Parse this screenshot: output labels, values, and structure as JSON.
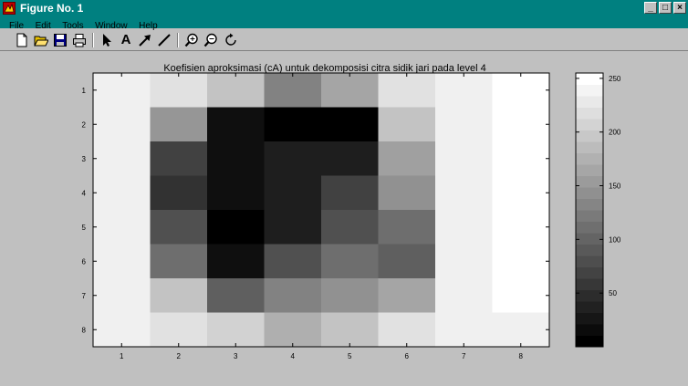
{
  "window": {
    "title": "Figure No. 1",
    "buttons": {
      "minimize": "_",
      "maximize": "□",
      "close": "×"
    }
  },
  "menu": {
    "items": [
      "File",
      "Edit",
      "Tools",
      "Window",
      "Help"
    ]
  },
  "toolbar": {
    "tools": [
      "new-figure",
      "open",
      "save",
      "print",
      "select-arrow",
      "text",
      "arrow",
      "line",
      "zoom-in",
      "zoom-out",
      "rotate"
    ],
    "text_tool_label": "A"
  },
  "chart_data": {
    "type": "heatmap",
    "title": "Koefisien aproksimasi (cA) untuk dekomposisi citra sidik jari pada level 4",
    "x_ticks": [
      "1",
      "2",
      "3",
      "4",
      "5",
      "6",
      "7",
      "8"
    ],
    "y_ticks": [
      "1",
      "2",
      "3",
      "4",
      "5",
      "6",
      "7",
      "8"
    ],
    "values": [
      [
        240,
        225,
        195,
        130,
        165,
        225,
        240,
        255
      ],
      [
        240,
        150,
        15,
        0,
        0,
        195,
        240,
        255
      ],
      [
        240,
        65,
        15,
        30,
        30,
        160,
        240,
        255
      ],
      [
        240,
        50,
        15,
        30,
        65,
        145,
        240,
        255
      ],
      [
        240,
        80,
        0,
        30,
        80,
        110,
        240,
        255
      ],
      [
        240,
        110,
        15,
        80,
        110,
        95,
        240,
        255
      ],
      [
        240,
        195,
        95,
        130,
        145,
        165,
        240,
        255
      ],
      [
        240,
        225,
        210,
        175,
        195,
        225,
        240,
        240
      ]
    ],
    "colorbar": {
      "range": [
        0,
        255
      ],
      "ticks": [
        "50",
        "100",
        "150",
        "200",
        "250"
      ],
      "tick_values": [
        50,
        100,
        150,
        200,
        250
      ],
      "levels": 24
    }
  }
}
